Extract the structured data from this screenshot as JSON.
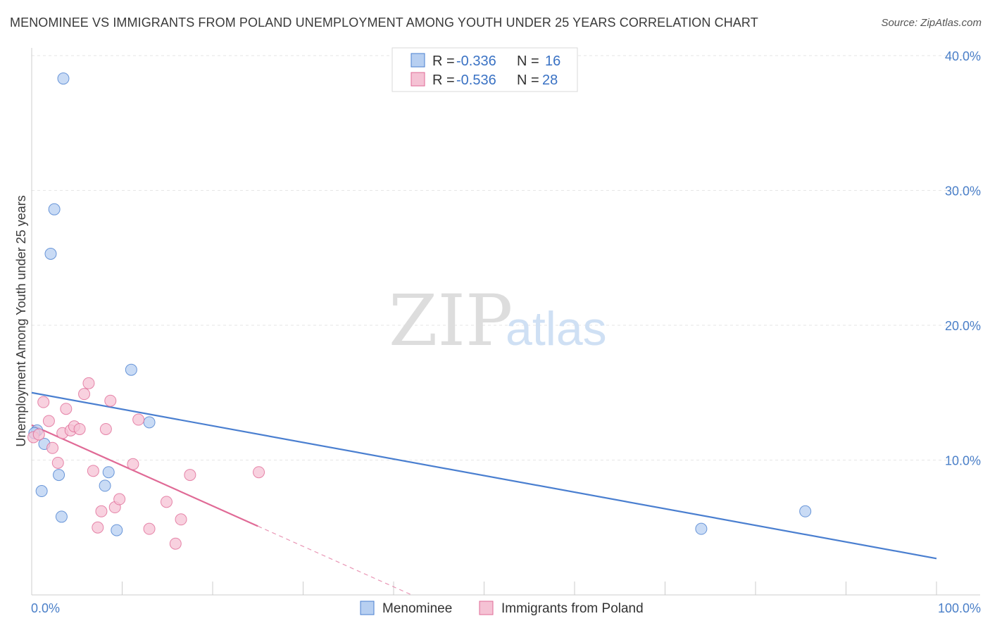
{
  "title": "MENOMINEE VS IMMIGRANTS FROM POLAND UNEMPLOYMENT AMONG YOUTH UNDER 25 YEARS CORRELATION CHART",
  "source": "Source: ZipAtlas.com",
  "watermark": {
    "zip": "ZIP",
    "atlas": "atlas"
  },
  "chart_data": {
    "type": "scatter",
    "ylabel": "Unemployment Among Youth under 25 years",
    "xlim": [
      0,
      100
    ],
    "ylim": [
      0,
      40
    ],
    "x_tick_labels": [
      "0.0%",
      "100.0%"
    ],
    "y_ticks": [
      10,
      20,
      30,
      40
    ],
    "y_tick_labels": [
      "10.0%",
      "20.0%",
      "30.0%",
      "40.0%"
    ],
    "legend": [
      {
        "r_label": "R =",
        "r_value": "-0.336",
        "n_label": "N =",
        "n_value": "16"
      },
      {
        "r_label": "R =",
        "r_value": "-0.536",
        "n_label": "N =",
        "n_value": "28"
      }
    ],
    "series": [
      {
        "name": "Menominee",
        "color": "#4a7fd0",
        "fill": "#b7cff1",
        "points": [
          [
            3.5,
            38.3
          ],
          [
            2.5,
            28.6
          ],
          [
            2.1,
            25.3
          ],
          [
            11,
            16.7
          ],
          [
            0.6,
            12.2
          ],
          [
            1.4,
            11.2
          ],
          [
            13,
            12.8
          ],
          [
            3.0,
            8.9
          ],
          [
            8.5,
            9.1
          ],
          [
            8.1,
            8.1
          ],
          [
            1.1,
            7.7
          ],
          [
            3.3,
            5.8
          ],
          [
            9.4,
            4.8
          ],
          [
            74,
            4.9
          ],
          [
            85.5,
            6.2
          ],
          [
            0.3,
            12.0
          ]
        ],
        "trend": {
          "x1": 0,
          "y1": 15.0,
          "x2": 100,
          "y2": 2.7
        }
      },
      {
        "name": "Immigrants from Poland",
        "color": "#e06a96",
        "fill": "#f5c2d4",
        "points": [
          [
            0.2,
            11.7
          ],
          [
            0.8,
            11.9
          ],
          [
            1.3,
            14.3
          ],
          [
            1.9,
            12.9
          ],
          [
            2.3,
            10.9
          ],
          [
            2.9,
            9.8
          ],
          [
            3.4,
            12.0
          ],
          [
            3.8,
            13.8
          ],
          [
            4.3,
            12.2
          ],
          [
            4.7,
            12.5
          ],
          [
            5.3,
            12.3
          ],
          [
            5.8,
            14.9
          ],
          [
            6.3,
            15.7
          ],
          [
            6.8,
            9.2
          ],
          [
            7.3,
            5.0
          ],
          [
            7.7,
            6.2
          ],
          [
            8.2,
            12.3
          ],
          [
            8.7,
            14.4
          ],
          [
            9.2,
            6.5
          ],
          [
            9.7,
            7.1
          ],
          [
            11.2,
            9.7
          ],
          [
            11.8,
            13.0
          ],
          [
            13.0,
            4.9
          ],
          [
            14.9,
            6.9
          ],
          [
            15.9,
            3.8
          ],
          [
            16.5,
            5.6
          ],
          [
            17.5,
            8.9
          ],
          [
            25.1,
            9.1
          ]
        ],
        "trend": {
          "x1": 0,
          "y1": 12.6,
          "x2": 25,
          "y2": 5.1
        },
        "trend_dashed": {
          "x1": 25,
          "y1": 5.1,
          "x2": 42,
          "y2": 0
        }
      }
    ]
  }
}
